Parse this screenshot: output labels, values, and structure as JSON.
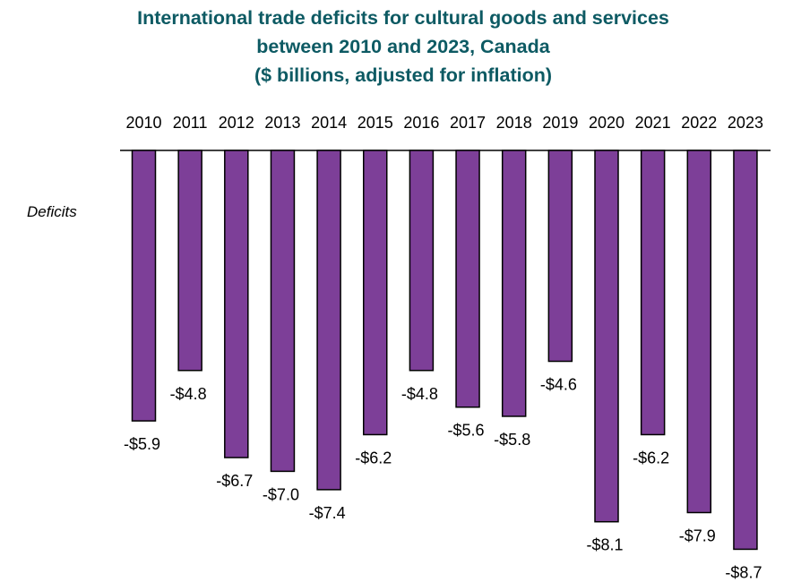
{
  "chart_data": {
    "type": "bar",
    "title": [
      "International trade deficits for cultural goods and services",
      "between 2010 and 2023, Canada",
      "($ billions, adjusted for inflation)"
    ],
    "ylabel": "Deficits",
    "xlabel": "",
    "categories": [
      "2010",
      "2011",
      "2012",
      "2013",
      "2014",
      "2015",
      "2016",
      "2017",
      "2018",
      "2019",
      "2020",
      "2021",
      "2022",
      "2023"
    ],
    "values": [
      -5.9,
      -4.8,
      -6.7,
      -7.0,
      -7.4,
      -6.2,
      -4.8,
      -5.6,
      -5.8,
      -4.6,
      -8.1,
      -6.2,
      -7.9,
      -8.7
    ],
    "data_labels": [
      "-$5.9",
      "-$4.8",
      "-$6.7",
      "-$7.0",
      "-$7.4",
      "-$6.2",
      "-$4.8",
      "-$5.6",
      "-$5.8",
      "-$4.6",
      "-$8.1",
      "-$6.2",
      "-$7.9",
      "-$8.7"
    ],
    "x_axis_position": "top",
    "ylim": [
      -9,
      0
    ],
    "grid": false,
    "legend": "none",
    "colors": {
      "bar": "#7d3f98",
      "bar_edge": "#000000",
      "title": "#0d5a63"
    }
  }
}
